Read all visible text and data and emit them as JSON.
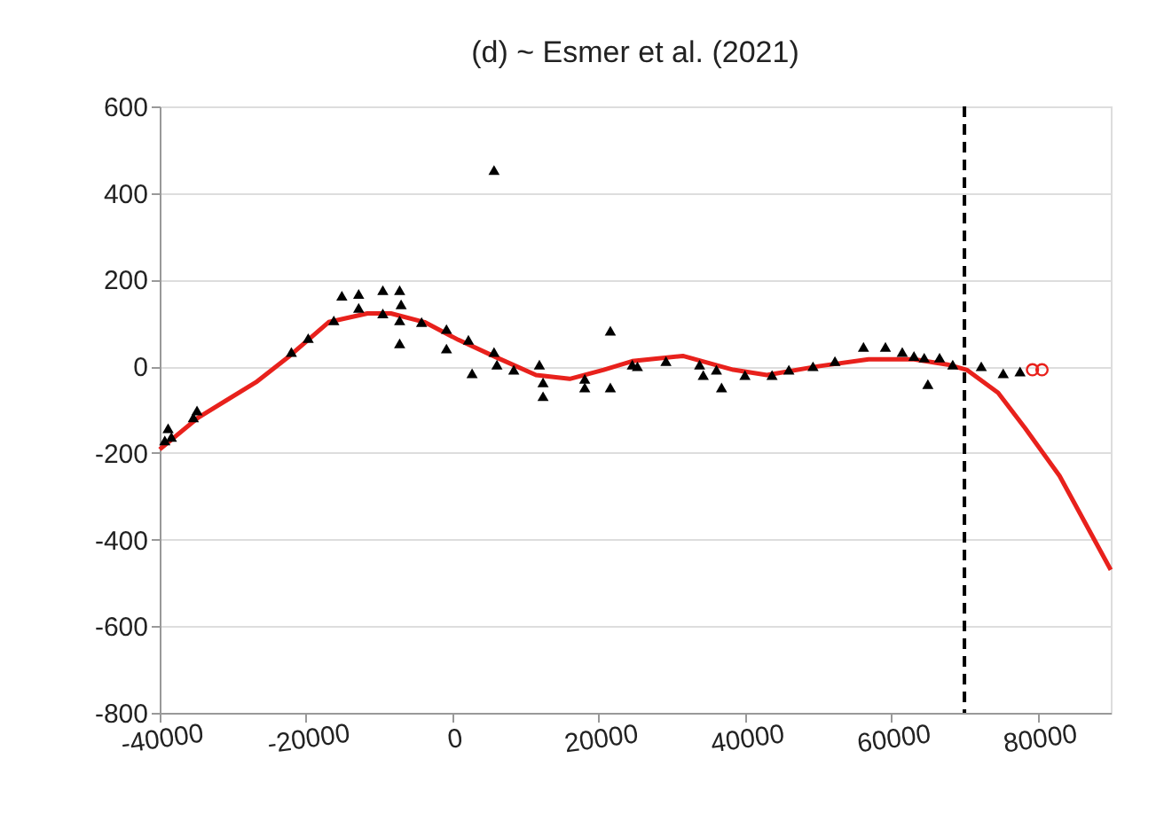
{
  "chart_data": {
    "type": "scatter",
    "title": "(d) ~ Esmer et al. (2021)",
    "xlim": [
      -40000,
      90000
    ],
    "xticks": [
      -40000,
      -20000,
      0,
      20000,
      40000,
      60000,
      80000
    ],
    "ylim": [
      -800,
      600
    ],
    "yticks": [
      -800,
      -600,
      -400,
      -200,
      0,
      200,
      400,
      600
    ],
    "grid": "y",
    "ref_lines": [
      {
        "axis": "x",
        "value": 70000,
        "color": "#000000",
        "line_style": "dashed"
      }
    ],
    "series": [
      {
        "type": "line",
        "color": "#e8211c",
        "line_style": "solid",
        "x": [
          -40000,
          -34700,
          -26850,
          -22240,
          -16900,
          -11600,
          -8400,
          -3800,
          830,
          6100,
          11440,
          16050,
          20700,
          24600,
          31500,
          38400,
          43000,
          50000,
          56900,
          63100,
          67700,
          70300,
          74600,
          78300,
          83000,
          90000
        ],
        "values": [
          -192,
          -118,
          -37,
          24,
          102,
          122,
          122,
          102,
          61,
          20,
          -20,
          -29,
          -8,
          12,
          24,
          -8,
          -20,
          0,
          16,
          16,
          4,
          -8,
          -61,
          -143,
          -253,
          -470
        ]
      },
      {
        "color": "#000000",
        "marker": "triangle",
        "x": [
          -38850,
          -38400,
          -39300,
          -34900,
          -35400,
          -22000,
          -19700,
          -16200,
          -15100,
          -12800,
          -12800,
          -9500,
          -9500,
          -7200,
          -7200,
          -7200,
          -7000,
          -4200,
          -800,
          -800,
          2200,
          2700,
          5700,
          5700,
          6100,
          8400,
          11900,
          12400,
          12400,
          18100,
          18100,
          21600,
          21600,
          24600,
          25300,
          29200,
          33800,
          34300,
          36100,
          36800,
          40000,
          43700,
          46000,
          49300,
          52300,
          56200,
          59200,
          61500,
          63100,
          64500,
          65000,
          66600,
          68400,
          72300,
          75300,
          77600
        ],
        "values": [
          -143,
          -163,
          -171,
          -102,
          -118,
          33,
          65,
          106,
          163,
          167,
          135,
          176,
          122,
          176,
          106,
          53,
          143,
          102,
          86,
          41,
          61,
          -16,
          453,
          33,
          4,
          -8,
          4,
          -37,
          -69,
          -29,
          -49,
          82,
          -49,
          4,
          0,
          12,
          4,
          -20,
          -8,
          -49,
          -20,
          -20,
          -8,
          0,
          12,
          45,
          45,
          33,
          24,
          20,
          -41,
          20,
          4,
          0,
          -16,
          -12
        ]
      },
      {
        "type": "scatter",
        "color": "#e8211c",
        "marker": "circle",
        "x": [
          79300,
          80600
        ],
        "values": [
          -8,
          -8
        ]
      }
    ]
  }
}
